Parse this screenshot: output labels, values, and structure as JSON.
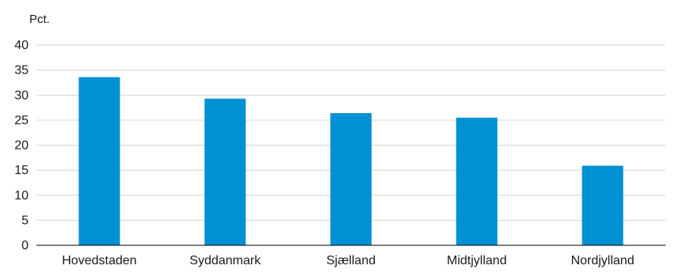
{
  "chart_data": {
    "type": "bar",
    "ylabel": "Pct.",
    "categories": [
      "Hovedstaden",
      "Syddanmark",
      "Sjælland",
      "Midtjylland",
      "Nordjylland"
    ],
    "values": [
      33.6,
      29.3,
      26.4,
      25.5,
      15.9
    ],
    "ylim": [
      0,
      40
    ],
    "yticks": [
      "0",
      "5",
      "10",
      "15",
      "20",
      "25",
      "30",
      "35",
      "40"
    ],
    "grid": true,
    "bar_color": "#0090d4",
    "grid_color": "#d4d4d4",
    "axis_color": "#000000"
  }
}
